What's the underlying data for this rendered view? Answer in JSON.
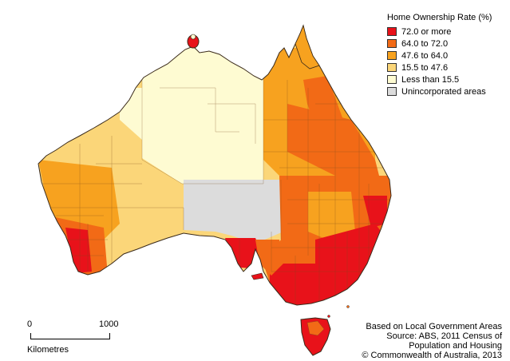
{
  "legend": {
    "title": "Home Ownership Rate (%)",
    "items": [
      {
        "label": "72.0 or more",
        "color": "#e8121a"
      },
      {
        "label": "64.0 to 72.0",
        "color": "#f26a16"
      },
      {
        "label": "47.6 to 64.0",
        "color": "#f7a21f"
      },
      {
        "label": "15.5 to 47.6",
        "color": "#fbd679"
      },
      {
        "label": "Less than 15.5",
        "color": "#fefbd2"
      },
      {
        "label": "Unincorporated areas",
        "color": "#dcdcdc"
      }
    ]
  },
  "scale": {
    "start_label": "0",
    "end_label": "1000",
    "unit": "Kilometres"
  },
  "source": {
    "lines": [
      "Based on Local Government Areas",
      "Source: ABS, 2011 Census of",
      "Population and Housing",
      "© Commonwealth of Australia, 2013"
    ]
  },
  "colors": {
    "boundary": "#7a4a1e",
    "coast": "#3a2a1a"
  }
}
